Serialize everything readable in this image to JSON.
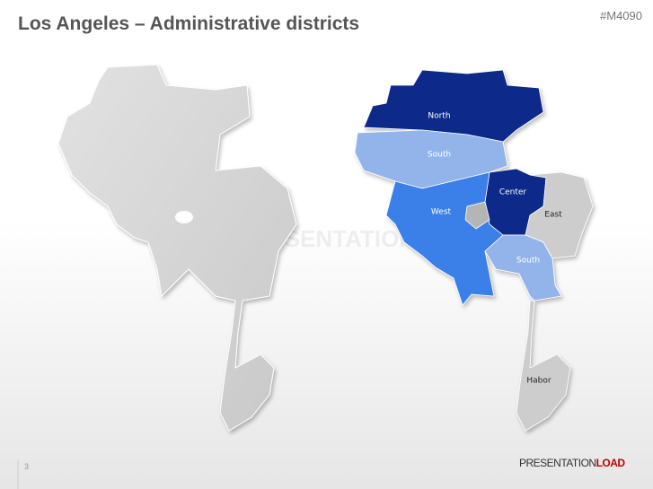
{
  "header": {
    "title": "Los Angeles – Administrative districts",
    "code": "#M4090"
  },
  "watermark": "PRESENTATIONLOAD",
  "map": {
    "districts": [
      {
        "label": "North"
      },
      {
        "label": "South"
      },
      {
        "label": "Center"
      },
      {
        "label": "West"
      },
      {
        "label": "East"
      },
      {
        "label": "South"
      },
      {
        "label": "Habor"
      }
    ]
  },
  "footer": {
    "page": "3",
    "logo": {
      "part1": "PRESENTATION",
      "part2": "LOAD"
    }
  }
}
